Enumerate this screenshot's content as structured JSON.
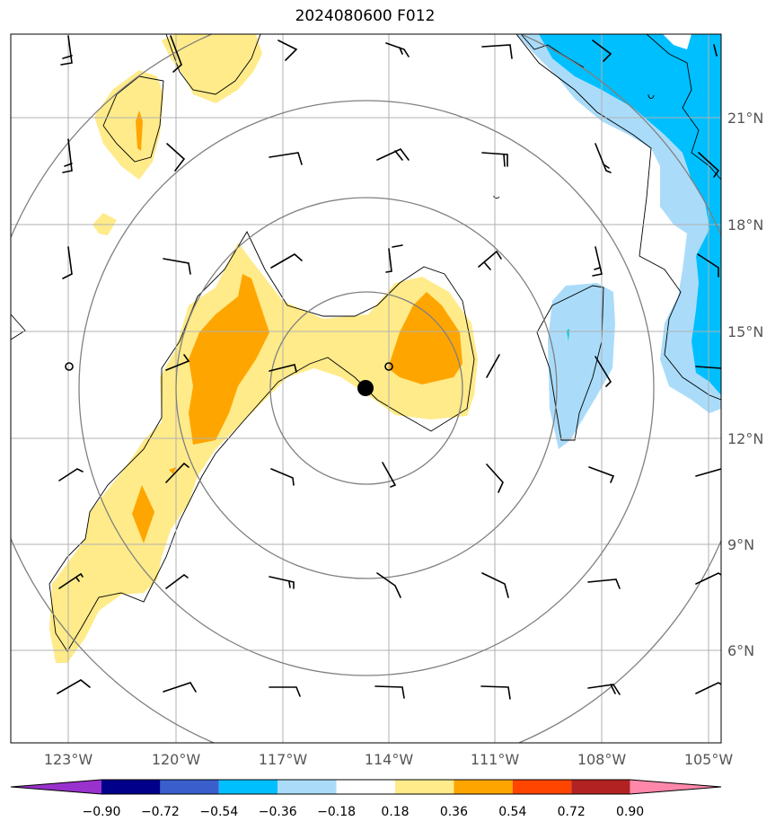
{
  "title": "2024080600 F012",
  "colors": {
    "pale_yellow": "#ffeb8a",
    "orange": "#ffa500",
    "light_blue": "#aadcfa",
    "sky_blue": "#00bfff",
    "cyan_small": "#00c8c8",
    "grid": "#b0b0b0",
    "ring": "#808080"
  },
  "map": {
    "lon_labels": [
      "123°W",
      "120°W",
      "117°W",
      "114°W",
      "111°W",
      "108°W",
      "105°W"
    ],
    "lat_labels": [
      "21°N",
      "18°N",
      "15°N",
      "12°N",
      "9°N",
      "6°N"
    ],
    "storm_center": {
      "lon": -114.7,
      "lat": 13.4
    }
  },
  "colorbar": {
    "tick_labels": [
      "−0.90",
      "−0.72",
      "−0.54",
      "−0.36",
      "−0.18",
      "0.18",
      "0.36",
      "0.54",
      "0.72",
      "0.90"
    ],
    "colors": [
      "#9932cc",
      "#00008b",
      "#3a5fcd",
      "#00bfff",
      "#aadcfa",
      "#ffffff",
      "#ffeb8a",
      "#ffa500",
      "#ff4500",
      "#b22222",
      "#ff88aa"
    ]
  }
}
